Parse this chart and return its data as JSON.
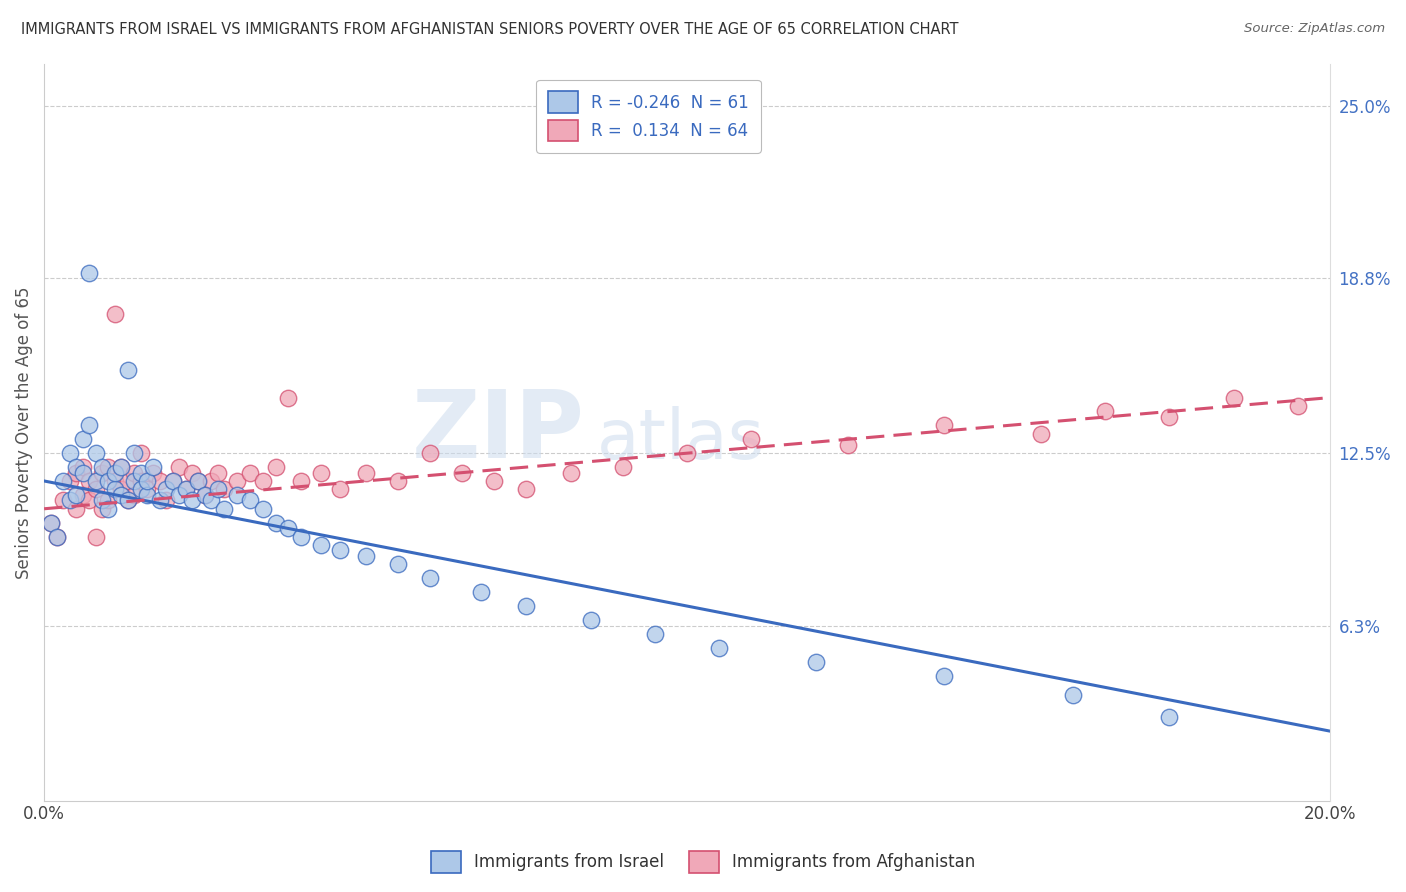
{
  "title": "IMMIGRANTS FROM ISRAEL VS IMMIGRANTS FROM AFGHANISTAN SENIORS POVERTY OVER THE AGE OF 65 CORRELATION CHART",
  "source": "Source: ZipAtlas.com",
  "ylabel": "Seniors Poverty Over the Age of 65",
  "xlim": [
    0.0,
    0.2
  ],
  "ylim": [
    0.0,
    0.265
  ],
  "right_yticks": [
    0.063,
    0.125,
    0.188,
    0.25
  ],
  "right_yticklabels": [
    "6.3%",
    "12.5%",
    "18.8%",
    "25.0%"
  ],
  "watermark_zip": "ZIP",
  "watermark_atlas": "atlas",
  "israel_R": -0.246,
  "israel_N": 61,
  "afghanistan_R": 0.134,
  "afghanistan_N": 64,
  "israel_color": "#adc8e8",
  "afghanistan_color": "#f0a8b8",
  "israel_line_color": "#3a6abf",
  "afghanistan_line_color": "#d45070",
  "legend_label_israel": "Immigrants from Israel",
  "legend_label_afghanistan": "Immigrants from Afghanistan",
  "israel_scatter_x": [
    0.001,
    0.002,
    0.003,
    0.004,
    0.004,
    0.005,
    0.005,
    0.006,
    0.006,
    0.007,
    0.007,
    0.008,
    0.008,
    0.009,
    0.009,
    0.01,
    0.01,
    0.011,
    0.011,
    0.012,
    0.012,
    0.013,
    0.013,
    0.014,
    0.014,
    0.015,
    0.015,
    0.016,
    0.016,
    0.017,
    0.018,
    0.019,
    0.02,
    0.021,
    0.022,
    0.023,
    0.024,
    0.025,
    0.026,
    0.027,
    0.028,
    0.03,
    0.032,
    0.034,
    0.036,
    0.038,
    0.04,
    0.043,
    0.046,
    0.05,
    0.055,
    0.06,
    0.068,
    0.075,
    0.085,
    0.095,
    0.105,
    0.12,
    0.14,
    0.16,
    0.175
  ],
  "israel_scatter_y": [
    0.1,
    0.095,
    0.115,
    0.125,
    0.108,
    0.12,
    0.11,
    0.13,
    0.118,
    0.19,
    0.135,
    0.115,
    0.125,
    0.108,
    0.12,
    0.115,
    0.105,
    0.112,
    0.118,
    0.11,
    0.12,
    0.155,
    0.108,
    0.115,
    0.125,
    0.112,
    0.118,
    0.11,
    0.115,
    0.12,
    0.108,
    0.112,
    0.115,
    0.11,
    0.112,
    0.108,
    0.115,
    0.11,
    0.108,
    0.112,
    0.105,
    0.11,
    0.108,
    0.105,
    0.1,
    0.098,
    0.095,
    0.092,
    0.09,
    0.088,
    0.085,
    0.08,
    0.075,
    0.07,
    0.065,
    0.06,
    0.055,
    0.05,
    0.045,
    0.038,
    0.03
  ],
  "afghanistan_scatter_x": [
    0.001,
    0.002,
    0.003,
    0.004,
    0.005,
    0.005,
    0.006,
    0.006,
    0.007,
    0.007,
    0.008,
    0.008,
    0.009,
    0.009,
    0.01,
    0.01,
    0.011,
    0.011,
    0.012,
    0.012,
    0.013,
    0.013,
    0.014,
    0.014,
    0.015,
    0.015,
    0.016,
    0.017,
    0.018,
    0.019,
    0.02,
    0.021,
    0.022,
    0.023,
    0.024,
    0.025,
    0.026,
    0.027,
    0.028,
    0.03,
    0.032,
    0.034,
    0.036,
    0.038,
    0.04,
    0.043,
    0.046,
    0.05,
    0.055,
    0.06,
    0.065,
    0.07,
    0.075,
    0.082,
    0.09,
    0.1,
    0.11,
    0.125,
    0.14,
    0.155,
    0.165,
    0.175,
    0.185,
    0.195
  ],
  "afghanistan_scatter_y": [
    0.1,
    0.095,
    0.108,
    0.115,
    0.105,
    0.118,
    0.11,
    0.12,
    0.108,
    0.115,
    0.095,
    0.112,
    0.118,
    0.105,
    0.12,
    0.108,
    0.175,
    0.115,
    0.112,
    0.12,
    0.108,
    0.115,
    0.118,
    0.11,
    0.115,
    0.125,
    0.112,
    0.118,
    0.115,
    0.108,
    0.115,
    0.12,
    0.112,
    0.118,
    0.115,
    0.11,
    0.115,
    0.118,
    0.112,
    0.115,
    0.118,
    0.115,
    0.12,
    0.145,
    0.115,
    0.118,
    0.112,
    0.118,
    0.115,
    0.125,
    0.118,
    0.115,
    0.112,
    0.118,
    0.12,
    0.125,
    0.13,
    0.128,
    0.135,
    0.132,
    0.14,
    0.138,
    0.145,
    0.142
  ]
}
